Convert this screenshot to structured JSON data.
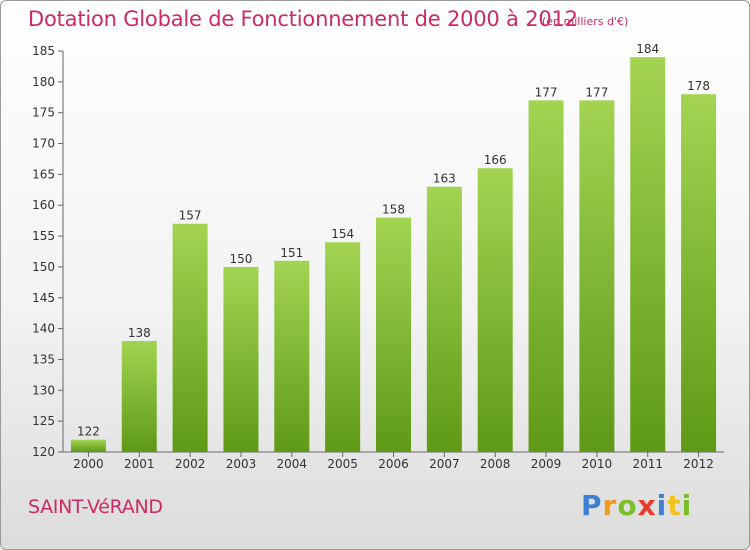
{
  "header": {
    "title": "Dotation Globale de Fonctionnement de 2000 à 2012",
    "subtitle": "(en milliers d'€)"
  },
  "footer": {
    "commune": "SAINT-VéRAND",
    "logo_letters": [
      "P",
      "r",
      "o",
      "x",
      "i",
      "t",
      "i"
    ]
  },
  "chart_data": {
    "type": "bar",
    "title": "Dotation Globale de Fonctionnement de 2000 à 2012",
    "subtitle": "(en milliers d'€)",
    "xlabel": "",
    "ylabel": "",
    "categories": [
      "2000",
      "2001",
      "2002",
      "2003",
      "2004",
      "2005",
      "2006",
      "2007",
      "2008",
      "2009",
      "2010",
      "2011",
      "2012"
    ],
    "values": [
      122,
      138,
      157,
      150,
      151,
      154,
      158,
      163,
      166,
      177,
      177,
      184,
      178
    ],
    "ylim": [
      120,
      185
    ],
    "yticks": [
      120,
      125,
      130,
      135,
      140,
      145,
      150,
      155,
      160,
      165,
      170,
      175,
      180,
      185
    ],
    "grid": false,
    "legend": "none",
    "bar_color": "#7cb82f",
    "bar_color_light": "#9fd04f",
    "title_color": "#cc2a63"
  }
}
